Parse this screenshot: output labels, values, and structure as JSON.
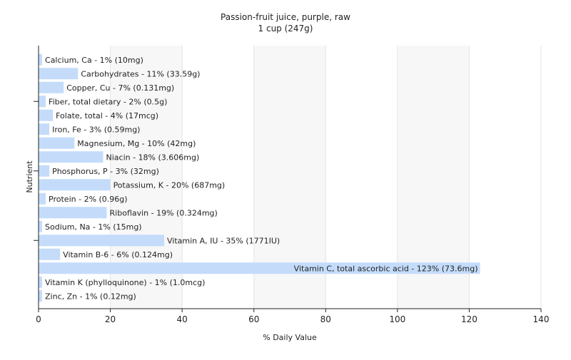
{
  "chart_data": {
    "type": "bar",
    "orientation": "horizontal",
    "title": "Passion-fruit juice, purple, raw",
    "subtitle": "1 cup (247g)",
    "xlabel": "% Daily Value",
    "ylabel": "Nutrient",
    "xlim": [
      0,
      140
    ],
    "xticks": [
      0,
      20,
      40,
      60,
      80,
      100,
      120,
      140
    ],
    "grid": true,
    "bar_color": "#c4dcfa",
    "categories": [
      "Calcium, Ca",
      "Carbohydrates",
      "Copper, Cu",
      "Fiber, total dietary",
      "Folate, total",
      "Iron, Fe",
      "Magnesium, Mg",
      "Niacin",
      "Phosphorus, P",
      "Potassium, K",
      "Protein",
      "Riboflavin",
      "Sodium, Na",
      "Vitamin A, IU",
      "Vitamin B-6",
      "Vitamin C, total ascorbic acid",
      "Vitamin K (phylloquinone)",
      "Zinc, Zn"
    ],
    "values": [
      1,
      11,
      7,
      2,
      4,
      3,
      10,
      18,
      3,
      20,
      2,
      19,
      1,
      35,
      6,
      123,
      1,
      1
    ],
    "labels": [
      "Calcium, Ca - 1% (10mg)",
      "Carbohydrates - 11% (33.59g)",
      "Copper, Cu - 7% (0.131mg)",
      "Fiber, total dietary - 2% (0.5g)",
      "Folate, total - 4% (17mcg)",
      "Iron, Fe - 3% (0.59mg)",
      "Magnesium, Mg - 10% (42mg)",
      "Niacin - 18% (3.606mg)",
      "Phosphorus, P - 3% (32mg)",
      "Potassium, K - 20% (687mg)",
      "Protein - 2% (0.96g)",
      "Riboflavin - 19% (0.324mg)",
      "Sodium, Na - 1% (15mg)",
      "Vitamin A, IU - 35% (1771IU)",
      "Vitamin B-6 - 6% (0.124mg)",
      "Vitamin C, total ascorbic acid - 123% (73.6mg)",
      "Vitamin K (phylloquinone) - 1% (1.0mcg)",
      "Zinc, Zn - 1% (0.12mg)"
    ]
  }
}
